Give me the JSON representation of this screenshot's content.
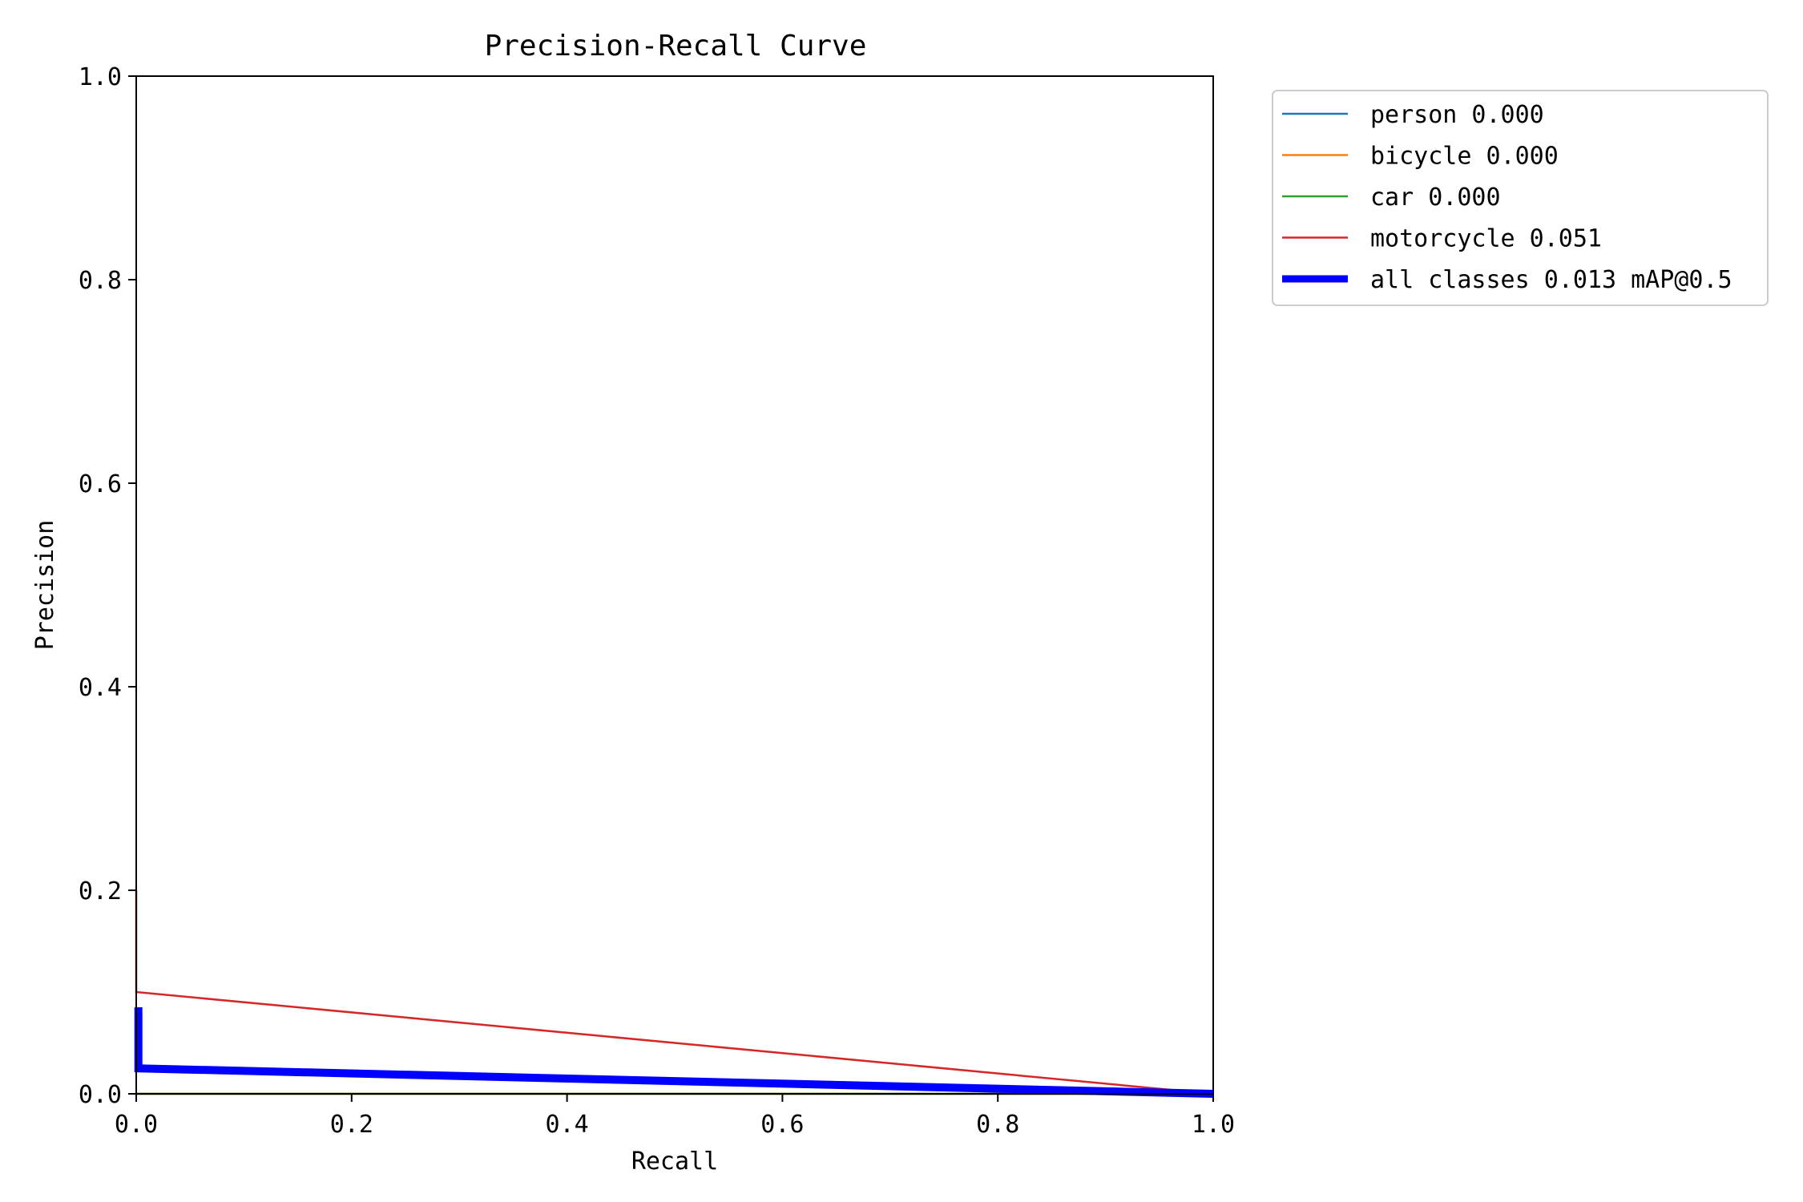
{
  "chart_data": {
    "type": "line",
    "title": "Precision-Recall Curve",
    "xlabel": "Recall",
    "ylabel": "Precision",
    "xlim": [
      0.0,
      1.0
    ],
    "ylim": [
      0.0,
      1.0
    ],
    "x_ticks": [
      "0.0",
      "0.2",
      "0.4",
      "0.6",
      "0.8",
      "1.0"
    ],
    "y_ticks": [
      "0.0",
      "0.2",
      "0.4",
      "0.6",
      "0.8",
      "1.0"
    ],
    "x_tick_values": [
      0.0,
      0.2,
      0.4,
      0.6,
      0.8,
      1.0
    ],
    "y_tick_values": [
      0.0,
      0.2,
      0.4,
      0.6,
      0.8,
      1.0
    ],
    "grid": false,
    "legend_position": "outside-top-right",
    "series": [
      {
        "name": "person 0.000",
        "color": "#1f77b4",
        "emphasis": "normal",
        "x": [
          0.0,
          1.0
        ],
        "y": [
          0.0,
          0.0
        ]
      },
      {
        "name": "bicycle 0.000",
        "color": "#ff7f0e",
        "emphasis": "normal",
        "x": [
          0.0,
          1.0
        ],
        "y": [
          0.0,
          0.0
        ]
      },
      {
        "name": "car 0.000",
        "color": "#2ca02c",
        "emphasis": "normal",
        "x": [
          0.0,
          1.0
        ],
        "y": [
          0.0,
          0.0
        ]
      },
      {
        "name": "motorcycle 0.051",
        "color": "#d62728",
        "emphasis": "normal",
        "x": [
          0.0,
          0.0,
          0.0,
          1.0
        ],
        "y": [
          0.2,
          0.1,
          0.1,
          0.0
        ]
      },
      {
        "name": "all classes 0.013 mAP@0.5",
        "color": "#0000ff",
        "emphasis": "bold",
        "x": [
          0.002,
          0.002,
          0.002,
          1.0
        ],
        "y": [
          0.085,
          0.025,
          0.025,
          0.0
        ]
      }
    ]
  }
}
